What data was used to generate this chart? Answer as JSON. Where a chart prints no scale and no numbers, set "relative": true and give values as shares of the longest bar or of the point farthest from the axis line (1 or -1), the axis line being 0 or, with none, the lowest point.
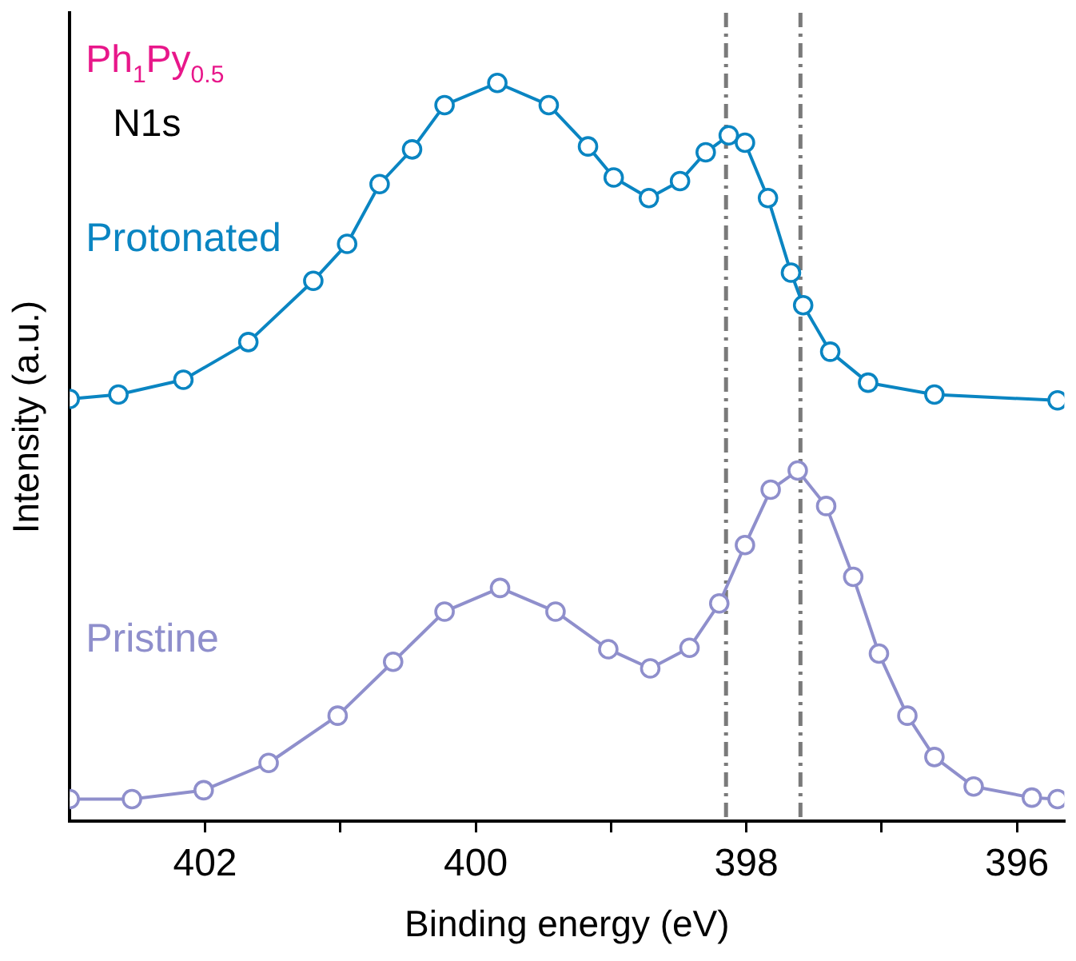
{
  "chart_data": {
    "type": "line",
    "xlabel": "Binding energy (eV)",
    "ylabel": "Intensity (a.u.)",
    "relative": true,
    "annotations": [
      "Ph$_{1}$Py$_{0.5}$",
      "N1s"
    ],
    "xlim": [
      403,
      395.65
    ],
    "xticks": [
      402,
      {
        "value": 401,
        "label": null
      },
      400,
      {
        "value": 399,
        "label": null
      },
      398,
      {
        "value": 397,
        "label": null
      },
      396
    ],
    "marker": "circle",
    "line_style": "solid",
    "legend": false,
    "grid": false,
    "ref_lines": [
      {
        "axis": "x",
        "value": 398.15,
        "color": "#7a7a7a",
        "line_style": "dashed"
      },
      {
        "axis": "x",
        "value": 397.6,
        "color": "#7a7a7a",
        "line_style": "dashed"
      }
    ],
    "series": [
      {
        "name": "Protonated",
        "color": "#0a85c2",
        "x": [
          403,
          402.64,
          402.16,
          401.68,
          401.2,
          400.95,
          400.71,
          400.47,
          400.23,
          399.84,
          399.46,
          399.17,
          398.98,
          398.72,
          398.49,
          398.3,
          398.13,
          398.01,
          397.84,
          397.67,
          397.58,
          397.38,
          397.1,
          396.61,
          395.7
        ],
        "values": [
          0.572,
          0.578,
          0.598,
          0.649,
          0.732,
          0.782,
          0.863,
          0.91,
          0.97,
          1,
          0.97,
          0.914,
          0.872,
          0.844,
          0.867,
          0.906,
          0.929,
          0.919,
          0.844,
          0.743,
          0.699,
          0.636,
          0.594,
          0.578,
          0.57
        ]
      },
      {
        "name": "Pristine",
        "color": "#8f8fcc",
        "x": [
          403,
          402.54,
          402.01,
          401.53,
          401.02,
          400.61,
          400.23,
          399.82,
          399.41,
          399.02,
          398.71,
          398.42,
          398.2,
          398.01,
          397.82,
          397.62,
          397.41,
          397.21,
          397.02,
          396.81,
          396.61,
          396.32,
          395.89,
          395.7
        ],
        "values": [
          0.03,
          0.03,
          0.042,
          0.079,
          0.143,
          0.216,
          0.284,
          0.316,
          0.284,
          0.233,
          0.207,
          0.235,
          0.295,
          0.374,
          0.449,
          0.475,
          0.427,
          0.331,
          0.227,
          0.143,
          0.087,
          0.047,
          0.032,
          0.03
        ]
      }
    ]
  }
}
